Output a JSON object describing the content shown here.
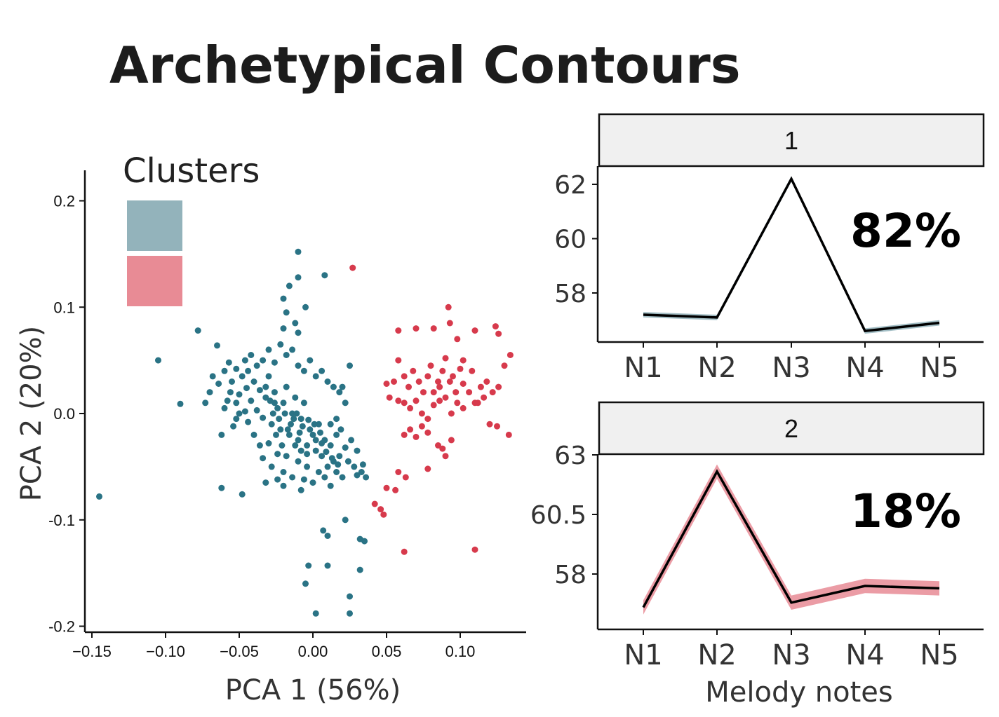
{
  "title": "Archetypical Contours",
  "colors": {
    "teal": "#2a7385",
    "red": "#d73a4c",
    "teal_light": "#93b3bb",
    "red_light": "#e88b95",
    "strip": "#f0f0f0"
  },
  "chart_data": [
    {
      "type": "scatter",
      "xlabel": "PCA 1 (56%)",
      "ylabel": "PCA 2 (20%)",
      "xlim": [
        -0.155,
        0.145
      ],
      "ylim": [
        -0.205,
        0.23
      ],
      "xticks": [
        -0.15,
        -0.1,
        -0.05,
        0.0,
        0.05,
        0.1
      ],
      "xtick_labels": [
        "−0.15",
        "−0.10",
        "−0.05",
        "0.00",
        "0.05",
        "0.10"
      ],
      "yticks": [
        0.2,
        0.1,
        0.0,
        -0.1,
        -0.2
      ],
      "ytick_labels": [
        "0.2",
        "0.1",
        "0.0",
        "-0.1",
        "-0.2"
      ],
      "legend": {
        "title": "Clusters",
        "position": "top-left",
        "entries": [
          {
            "color": "#93b3bb"
          },
          {
            "color": "#e88b95"
          }
        ]
      },
      "series": [
        {
          "color": "#2a7385",
          "points": [
            [
              -0.145,
              -0.078
            ],
            [
              -0.105,
              0.05
            ],
            [
              -0.09,
              0.009
            ],
            [
              -0.078,
              0.078
            ],
            [
              -0.062,
              -0.07
            ],
            [
              -0.048,
              -0.076
            ],
            [
              -0.065,
              0.064
            ],
            [
              -0.068,
              0.035
            ],
            [
              -0.064,
              0.028
            ],
            [
              -0.06,
              0.04
            ],
            [
              -0.057,
              0.048
            ],
            [
              -0.055,
              0.03
            ],
            [
              -0.052,
              0.042
            ],
            [
              -0.05,
              0.018
            ],
            [
              -0.046,
              0.05
            ],
            [
              -0.045,
              0.024
            ],
            [
              -0.07,
              0.02
            ],
            [
              -0.073,
              0.01
            ],
            [
              -0.06,
              0.005
            ],
            [
              -0.056,
              0.02
            ],
            [
              -0.052,
              0.01
            ],
            [
              -0.048,
              0.035
            ],
            [
              -0.044,
              0.04
            ],
            [
              -0.042,
              0.012
            ],
            [
              -0.04,
              0.03
            ],
            [
              -0.038,
              0.003
            ],
            [
              -0.036,
              0.022
            ],
            [
              -0.034,
              -0.004
            ],
            [
              -0.032,
              0.015
            ],
            [
              -0.03,
              0.035
            ],
            [
              -0.028,
              -0.01
            ],
            [
              -0.026,
              0.02
            ],
            [
              -0.024,
              0.005
            ],
            [
              -0.022,
              -0.015
            ],
            [
              -0.02,
              0.01
            ],
            [
              -0.018,
              0.025
            ],
            [
              -0.016,
              -0.02
            ],
            [
              -0.014,
              0.0
            ],
            [
              -0.012,
              0.015
            ],
            [
              -0.01,
              -0.025
            ],
            [
              -0.008,
              -0.005
            ],
            [
              -0.006,
              0.01
            ],
            [
              -0.004,
              -0.03
            ],
            [
              -0.002,
              -0.015
            ],
            [
              0.0,
              -0.02
            ],
            [
              0.002,
              -0.035
            ],
            [
              0.004,
              -0.01
            ],
            [
              0.006,
              -0.04
            ],
            [
              0.008,
              -0.025
            ],
            [
              0.01,
              -0.05
            ],
            [
              0.012,
              -0.03
            ],
            [
              0.014,
              -0.045
            ],
            [
              0.016,
              -0.02
            ],
            [
              0.018,
              -0.04
            ],
            [
              0.02,
              -0.06
            ],
            [
              0.022,
              -0.032
            ],
            [
              0.024,
              -0.045
            ],
            [
              0.026,
              -0.025
            ],
            [
              0.028,
              -0.05
            ],
            [
              0.03,
              -0.035
            ],
            [
              0.034,
              -0.048
            ],
            [
              0.036,
              -0.06
            ],
            [
              -0.046,
              0.002
            ],
            [
              -0.044,
              -0.008
            ],
            [
              -0.04,
              -0.02
            ],
            [
              -0.036,
              -0.03
            ],
            [
              -0.034,
              -0.042
            ],
            [
              -0.03,
              -0.028
            ],
            [
              -0.028,
              -0.05
            ],
            [
              -0.024,
              -0.038
            ],
            [
              -0.02,
              -0.055
            ],
            [
              -0.018,
              -0.04
            ],
            [
              -0.014,
              -0.06
            ],
            [
              -0.01,
              -0.045
            ],
            [
              -0.006,
              -0.062
            ],
            [
              -0.004,
              -0.05
            ],
            [
              0.0,
              -0.065
            ],
            [
              0.004,
              -0.055
            ],
            [
              0.008,
              -0.06
            ],
            [
              0.012,
              -0.068
            ],
            [
              0.016,
              -0.055
            ],
            [
              -0.042,
              0.055
            ],
            [
              -0.038,
              0.045
            ],
            [
              -0.034,
              0.05
            ],
            [
              -0.03,
              0.06
            ],
            [
              -0.026,
              0.048
            ],
            [
              -0.022,
              0.065
            ],
            [
              -0.018,
              0.055
            ],
            [
              -0.014,
              0.06
            ],
            [
              -0.01,
              0.045
            ],
            [
              -0.006,
              0.04
            ],
            [
              -0.002,
              0.05
            ],
            [
              0.002,
              0.035
            ],
            [
              0.006,
              0.04
            ],
            [
              0.01,
              0.03
            ],
            [
              0.014,
              0.025
            ],
            [
              0.018,
              0.02
            ],
            [
              0.022,
              0.01
            ],
            [
              -0.02,
              0.08
            ],
            [
              -0.018,
              0.095
            ],
            [
              -0.02,
              0.108
            ],
            [
              -0.016,
              0.12
            ],
            [
              -0.01,
              0.128
            ],
            [
              -0.012,
              0.085
            ],
            [
              -0.01,
              0.076
            ],
            [
              -0.005,
              0.1
            ],
            [
              -0.01,
              0.152
            ],
            [
              0.008,
              0.13
            ],
            [
              0.025,
              0.045
            ],
            [
              0.02,
              0.025
            ],
            [
              0.03,
              -0.058
            ],
            [
              0.033,
              -0.055
            ],
            [
              0.007,
              -0.11
            ],
            [
              0.01,
              -0.115
            ],
            [
              0.022,
              -0.1
            ],
            [
              0.032,
              -0.118
            ],
            [
              0.035,
              -0.12
            ],
            [
              -0.003,
              -0.143
            ],
            [
              0.01,
              -0.143
            ],
            [
              0.032,
              -0.147
            ],
            [
              -0.005,
              -0.16
            ],
            [
              0.025,
              -0.172
            ],
            [
              0.002,
              -0.188
            ],
            [
              0.025,
              -0.188
            ],
            [
              -0.032,
              -0.065
            ],
            [
              -0.024,
              -0.062
            ],
            [
              -0.02,
              -0.068
            ],
            [
              -0.008,
              -0.072
            ],
            [
              -0.062,
              -0.02
            ],
            [
              -0.054,
              -0.012
            ],
            [
              -0.012,
              -0.03
            ],
            [
              -0.008,
              -0.035
            ],
            [
              -0.004,
              -0.038
            ],
            [
              0.002,
              -0.025
            ],
            [
              0.006,
              -0.028
            ],
            [
              0.009,
              -0.036
            ],
            [
              0.013,
              -0.042
            ],
            [
              0.017,
              -0.048
            ],
            [
              -0.026,
              0.01
            ],
            [
              -0.023,
              -0.005
            ],
            [
              -0.019,
              0.0
            ],
            [
              -0.015,
              -0.01
            ],
            [
              -0.011,
              0.0
            ],
            [
              -0.007,
              -0.012
            ],
            [
              -0.003,
              -0.006
            ],
            [
              0.001,
              -0.01
            ],
            [
              0.005,
              -0.018
            ],
            [
              -0.032,
              0.025
            ],
            [
              -0.029,
              0.012
            ],
            [
              -0.027,
              0.0
            ],
            [
              -0.025,
              -0.02
            ],
            [
              -0.021,
              -0.03
            ],
            [
              -0.017,
              -0.015
            ],
            [
              -0.013,
              -0.005
            ],
            [
              -0.009,
              -0.018
            ],
            [
              -0.05,
              0.0
            ],
            [
              -0.052,
              -0.005
            ],
            [
              -0.058,
              0.012
            ],
            [
              0.012,
              -0.01
            ],
            [
              0.016,
              -0.005
            ],
            [
              0.019,
              -0.015
            ]
          ]
        },
        {
          "color": "#d73a4c",
          "points": [
            [
              0.027,
              0.137
            ],
            [
              0.058,
              0.078
            ],
            [
              0.07,
              0.08
            ],
            [
              0.082,
              0.08
            ],
            [
              0.092,
              0.1
            ],
            [
              0.093,
              0.085
            ],
            [
              0.098,
              0.07
            ],
            [
              0.11,
              0.078
            ],
            [
              0.124,
              0.082
            ],
            [
              0.126,
              0.075
            ],
            [
              0.13,
              0.045
            ],
            [
              0.134,
              0.055
            ],
            [
              0.102,
              0.05
            ],
            [
              0.1,
              0.042
            ],
            [
              0.095,
              0.035
            ],
            [
              0.09,
              0.052
            ],
            [
              0.088,
              0.04
            ],
            [
              0.085,
              0.03
            ],
            [
              0.08,
              0.045
            ],
            [
              0.078,
              0.035
            ],
            [
              0.075,
              0.02
            ],
            [
              0.072,
              0.03
            ],
            [
              0.068,
              0.04
            ],
            [
              0.065,
              0.025
            ],
            [
              0.062,
              0.035
            ],
            [
              0.058,
              0.05
            ],
            [
              0.055,
              0.03
            ],
            [
              0.05,
              0.028
            ],
            [
              0.052,
              0.015
            ],
            [
              0.058,
              0.012
            ],
            [
              0.062,
              0.01
            ],
            [
              0.066,
              0.005
            ],
            [
              0.07,
              0.012
            ],
            [
              0.074,
              0.0
            ],
            [
              0.078,
              -0.005
            ],
            [
              0.082,
              0.008
            ],
            [
              0.086,
              0.012
            ],
            [
              0.09,
              0.015
            ],
            [
              0.094,
              0.0
            ],
            [
              0.098,
              0.01
            ],
            [
              0.102,
              0.005
            ],
            [
              0.106,
              0.02
            ],
            [
              0.11,
              0.01
            ],
            [
              0.114,
              0.025
            ],
            [
              0.118,
              0.03
            ],
            [
              0.122,
              0.02
            ],
            [
              0.126,
              0.025
            ],
            [
              0.133,
              -0.02
            ],
            [
              0.125,
              -0.012
            ],
            [
              0.12,
              -0.01
            ],
            [
              0.062,
              -0.02
            ],
            [
              0.066,
              -0.015
            ],
            [
              0.07,
              -0.022
            ],
            [
              0.074,
              -0.012
            ],
            [
              0.078,
              -0.018
            ],
            [
              0.085,
              -0.03
            ],
            [
              0.088,
              -0.033
            ],
            [
              0.09,
              -0.04
            ],
            [
              0.094,
              -0.025
            ],
            [
              0.078,
              -0.052
            ],
            [
              0.058,
              -0.055
            ],
            [
              0.05,
              -0.07
            ],
            [
              0.056,
              -0.072
            ],
            [
              0.063,
              -0.06
            ],
            [
              0.046,
              -0.09
            ],
            [
              0.042,
              -0.085
            ],
            [
              0.048,
              -0.095
            ],
            [
              0.062,
              -0.13
            ],
            [
              0.11,
              -0.128
            ],
            [
              0.082,
              0.02
            ],
            [
              0.086,
              0.025
            ],
            [
              0.093,
              0.03
            ],
            [
              0.097,
              0.02
            ],
            [
              0.102,
              0.028
            ],
            [
              0.108,
              0.04
            ],
            [
              0.112,
              0.01
            ],
            [
              0.116,
              0.015
            ]
          ]
        }
      ]
    },
    {
      "type": "line",
      "facet_label": "1",
      "annotation": "82%",
      "categories": [
        "N1",
        "N2",
        "N3",
        "N4",
        "N5"
      ],
      "values": [
        57.2,
        57.1,
        62.2,
        56.6,
        56.9
      ],
      "ribbon": 0.1,
      "ylim": [
        55.8,
        62.65
      ],
      "yticks": [
        62,
        60,
        58
      ],
      "ytick_labels": [
        "62",
        "60",
        "58"
      ],
      "ribbon_color": "#93b3bb"
    },
    {
      "type": "line",
      "facet_label": "2",
      "annotation": "18%",
      "categories": [
        "N1",
        "N2",
        "N3",
        "N4",
        "N5"
      ],
      "values": [
        56.6,
        62.3,
        56.8,
        57.5,
        57.4
      ],
      "ribbon": 0.3,
      "ylim": [
        55.35,
        63.0
      ],
      "yticks": [
        63,
        60.5,
        58
      ],
      "ytick_labels": [
        "63",
        "60.5",
        "58"
      ],
      "ribbon_color": "#e88b95",
      "xlabel": "Melody notes"
    }
  ]
}
